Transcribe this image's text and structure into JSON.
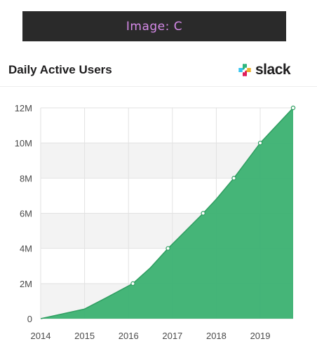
{
  "banner": {
    "text": "Image: C"
  },
  "header": {
    "brand": "slack"
  },
  "colors": {
    "area": "#3fb374",
    "area_stroke": "#2f9e61",
    "band": "#f3f3f3",
    "grid": "#e2e2e2",
    "logo": [
      "#36c5f0",
      "#2eb67d",
      "#ecb22e",
      "#e01e5a"
    ]
  },
  "icons": {
    "logo": "slack-logo-icon"
  },
  "chart_data": {
    "type": "area",
    "title": "Daily Active Users",
    "xlabel": "",
    "ylabel": "",
    "xlim": [
      2014,
      2019.75
    ],
    "ylim": [
      0,
      12000000
    ],
    "x_ticks": [
      2014,
      2015,
      2016,
      2017,
      2018,
      2019
    ],
    "x_tick_labels": [
      "2014",
      "2015",
      "2016",
      "2017",
      "2018",
      "2019"
    ],
    "y_ticks": [
      0,
      2000000,
      4000000,
      6000000,
      8000000,
      10000000,
      12000000
    ],
    "y_tick_labels": [
      "0",
      "2M",
      "4M",
      "6M",
      "8M",
      "10M",
      "12M"
    ],
    "grid": true,
    "legend": "none",
    "series": [
      {
        "x": [
          2014.0,
          2015.0,
          2015.5,
          2016.1,
          2016.5,
          2016.9,
          2017.7,
          2018.0,
          2018.4,
          2019.0,
          2019.75
        ],
        "values": [
          0,
          550000,
          1200000,
          2000000,
          2900000,
          4000000,
          6000000,
          6800000,
          8000000,
          10000000,
          12000000
        ]
      }
    ],
    "markers": [
      {
        "x": 2016.1,
        "y": 2000000
      },
      {
        "x": 2016.9,
        "y": 4000000
      },
      {
        "x": 2017.7,
        "y": 6000000
      },
      {
        "x": 2018.4,
        "y": 8000000
      },
      {
        "x": 2019.0,
        "y": 10000000
      },
      {
        "x": 2019.75,
        "y": 12000000
      }
    ]
  }
}
